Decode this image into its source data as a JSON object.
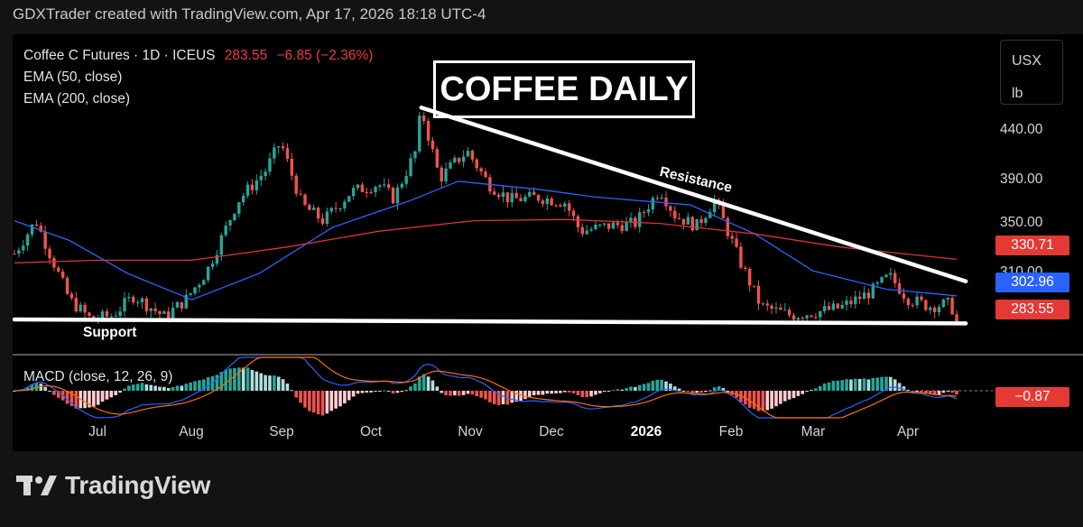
{
  "header": {
    "credit": "GDXTrader created with TradingView.com, Apr 17, 2026 18:18 UTC-4"
  },
  "legend": {
    "symbol": "Coffee C Futures · 1D · ICEUS",
    "price": "283.55",
    "change": "−6.85 (−2.36%)",
    "ema50": "EMA (50, close)",
    "ema200": "EMA (200, close)"
  },
  "title_box": "COFFEE DAILY",
  "units": {
    "currency": "USX",
    "unit": "lb"
  },
  "annotations": {
    "resistance": "Resistance",
    "support": "Support"
  },
  "macd_label": "MACD (close, 12, 26, 9)",
  "footer": {
    "brand": "TradingView"
  },
  "colors": {
    "up": "#26a69a",
    "down": "#ef5350",
    "ema50": "#2962ff",
    "ema200": "#e0303a",
    "macd_line": "#2962ff",
    "signal_line": "#ff6d00"
  },
  "chart_data": {
    "type": "candlestick",
    "x_axis_labels": [
      "Jul",
      "Aug",
      "Sep",
      "Oct",
      "Nov",
      "Dec",
      "2026",
      "Feb",
      "Mar",
      "Apr"
    ],
    "y_axis_ticks": [
      "440.00",
      "390.00",
      "350.00",
      "310.00"
    ],
    "price_tags": {
      "ema200": "330.71",
      "ema50": "302.96",
      "last": "283.55",
      "macd": "−0.87"
    },
    "ylim": [
      255,
      460
    ],
    "close_path": [
      [
        "2025-06-13",
        335
      ],
      [
        "2025-06-20",
        360
      ],
      [
        "2025-07-01",
        300
      ],
      [
        "2025-07-08",
        285
      ],
      [
        "2025-07-15",
        288
      ],
      [
        "2025-07-22",
        303
      ],
      [
        "2025-08-01",
        287
      ],
      [
        "2025-08-08",
        300
      ],
      [
        "2025-08-15",
        322
      ],
      [
        "2025-08-25",
        375
      ],
      [
        "2025-09-03",
        398
      ],
      [
        "2025-09-08",
        420
      ],
      [
        "2025-09-15",
        372
      ],
      [
        "2025-09-22",
        360
      ],
      [
        "2025-10-01",
        382
      ],
      [
        "2025-10-10",
        388
      ],
      [
        "2025-10-15",
        377
      ],
      [
        "2025-10-22",
        412
      ],
      [
        "2025-10-24",
        445
      ],
      [
        "2025-10-30",
        392
      ],
      [
        "2025-11-03",
        402
      ],
      [
        "2025-11-08",
        413
      ],
      [
        "2025-11-15",
        388
      ],
      [
        "2025-11-22",
        376
      ],
      [
        "2025-12-01",
        378
      ],
      [
        "2025-12-10",
        374
      ],
      [
        "2025-12-15",
        352
      ],
      [
        "2025-12-24",
        356
      ],
      [
        "2026-01-02",
        358
      ],
      [
        "2026-01-10",
        384
      ],
      [
        "2026-01-15",
        364
      ],
      [
        "2026-01-22",
        356
      ],
      [
        "2026-01-28",
        376
      ],
      [
        "2026-02-05",
        330
      ],
      [
        "2026-02-12",
        295
      ],
      [
        "2026-02-22",
        288
      ],
      [
        "2026-03-03",
        291
      ],
      [
        "2026-03-10",
        294
      ],
      [
        "2026-03-20",
        306
      ],
      [
        "2026-03-26",
        318
      ],
      [
        "2026-04-01",
        301
      ],
      [
        "2026-04-08",
        295
      ],
      [
        "2026-04-15",
        297
      ],
      [
        "2026-04-17",
        283.55
      ]
    ],
    "trendlines": [
      {
        "name": "Resistance",
        "from": [
          "2025-10-24",
          446
        ],
        "to": [
          "2026-04-20",
          314
        ]
      },
      {
        "name": "Support",
        "from": [
          "2025-06-13",
          285
        ],
        "to": [
          "2026-04-20",
          282
        ]
      }
    ],
    "series": [
      {
        "name": "EMA (50, close)",
        "path": [
          [
            "2025-06-13",
            360
          ],
          [
            "2025-07-01",
            345
          ],
          [
            "2025-07-20",
            320
          ],
          [
            "2025-08-10",
            300
          ],
          [
            "2025-09-01",
            320
          ],
          [
            "2025-09-25",
            355
          ],
          [
            "2025-10-20",
            375
          ],
          [
            "2025-11-05",
            390
          ],
          [
            "2025-12-01",
            384
          ],
          [
            "2025-12-20",
            378
          ],
          [
            "2026-01-20",
            372
          ],
          [
            "2026-02-10",
            350
          ],
          [
            "2026-03-01",
            322
          ],
          [
            "2026-03-25",
            308
          ],
          [
            "2026-04-17",
            302.96
          ]
        ]
      },
      {
        "name": "EMA (200, close)",
        "path": [
          [
            "2025-06-13",
            328
          ],
          [
            "2025-07-10",
            330
          ],
          [
            "2025-08-10",
            330
          ],
          [
            "2025-09-10",
            340
          ],
          [
            "2025-10-10",
            352
          ],
          [
            "2025-11-10",
            360
          ],
          [
            "2025-12-10",
            361
          ],
          [
            "2026-01-10",
            358
          ],
          [
            "2026-02-10",
            350
          ],
          [
            "2026-03-10",
            340
          ],
          [
            "2026-04-17",
            330.71
          ]
        ]
      }
    ]
  }
}
